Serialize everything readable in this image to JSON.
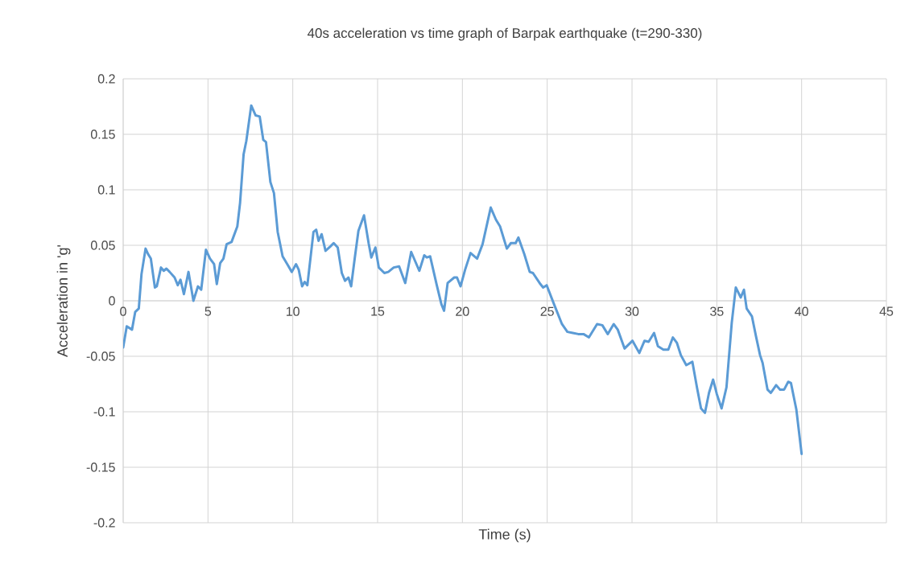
{
  "chart_data": {
    "type": "line",
    "title": "40s acceleration vs time graph of Barpak earthquake (t=290-330)",
    "xlabel": "Time (s)",
    "ylabel": "Acceleration in 'g'",
    "xlim": [
      0,
      45
    ],
    "xticks": [
      0,
      5,
      10,
      15,
      20,
      25,
      30,
      35,
      40,
      45
    ],
    "ylim": [
      -0.2,
      0.2
    ],
    "yticks": [
      0.2,
      0.15,
      0.1,
      0.05,
      0,
      -0.05,
      -0.1,
      -0.15,
      -0.2
    ],
    "grid": true,
    "marker": "none",
    "line_style": "solid",
    "series": [
      {
        "color": "#5b9bd5",
        "x": [
          0,
          0.21,
          0.52,
          0.71,
          0.92,
          1.08,
          1.32,
          1.47,
          1.63,
          1.87,
          1.98,
          2.23,
          2.39,
          2.55,
          2.74,
          3.03,
          3.22,
          3.38,
          3.58,
          3.85,
          4.14,
          4.41,
          4.6,
          4.88,
          5.12,
          5.36,
          5.52,
          5.72,
          5.91,
          6.1,
          6.39,
          6.73,
          6.89,
          7.1,
          7.26,
          7.55,
          7.81,
          8.05,
          8.26,
          8.42,
          8.68,
          8.89,
          9.11,
          9.4,
          9.71,
          9.94,
          10.19,
          10.35,
          10.55,
          10.7,
          10.86,
          11.22,
          11.38,
          11.52,
          11.7,
          11.93,
          12.22,
          12.41,
          12.65,
          12.89,
          13.08,
          13.28,
          13.44,
          13.65,
          13.87,
          14.2,
          14.47,
          14.63,
          14.87,
          15.07,
          15.4,
          15.63,
          15.95,
          16.27,
          16.63,
          16.98,
          17.46,
          17.75,
          17.9,
          18.1,
          18.49,
          18.76,
          18.92,
          19.13,
          19.52,
          19.68,
          19.89,
          20.16,
          20.48,
          20.87,
          21.19,
          21.67,
          21.98,
          22.22,
          22.62,
          22.86,
          23.14,
          23.3,
          23.65,
          23.97,
          24.16,
          24.6,
          24.76,
          24.97,
          25.4,
          25.87,
          26.19,
          26.51,
          26.83,
          27.14,
          27.46,
          27.94,
          28.25,
          28.57,
          28.92,
          29.16,
          29.56,
          30.03,
          30.43,
          30.74,
          30.98,
          31.3,
          31.53,
          31.85,
          32.14,
          32.41,
          32.65,
          32.88,
          33.2,
          33.56,
          33.83,
          34.07,
          34.3,
          34.54,
          34.78,
          35.0,
          35.28,
          35.57,
          35.88,
          36.12,
          36.41,
          36.6,
          36.76,
          37.07,
          37.31,
          37.55,
          37.7,
          37.99,
          38.18,
          38.5,
          38.73,
          38.97,
          39.21,
          39.37,
          39.69,
          40.0
        ],
        "values": [
          -0.042,
          -0.023,
          -0.026,
          -0.01,
          -0.007,
          0.024,
          0.047,
          0.042,
          0.038,
          0.012,
          0.013,
          0.03,
          0.027,
          0.029,
          0.026,
          0.021,
          0.014,
          0.019,
          0.006,
          0.026,
          0.0,
          0.013,
          0.01,
          0.046,
          0.038,
          0.033,
          0.015,
          0.034,
          0.038,
          0.051,
          0.053,
          0.067,
          0.088,
          0.132,
          0.144,
          0.176,
          0.167,
          0.166,
          0.145,
          0.143,
          0.107,
          0.097,
          0.062,
          0.04,
          0.032,
          0.026,
          0.033,
          0.028,
          0.013,
          0.017,
          0.014,
          0.062,
          0.064,
          0.054,
          0.06,
          0.045,
          0.049,
          0.052,
          0.048,
          0.025,
          0.018,
          0.021,
          0.013,
          0.038,
          0.063,
          0.077,
          0.052,
          0.039,
          0.048,
          0.03,
          0.025,
          0.026,
          0.03,
          0.031,
          0.016,
          0.044,
          0.027,
          0.041,
          0.039,
          0.04,
          0.014,
          -0.003,
          -0.009,
          0.016,
          0.021,
          0.021,
          0.013,
          0.028,
          0.043,
          0.038,
          0.051,
          0.084,
          0.073,
          0.067,
          0.047,
          0.052,
          0.052,
          0.057,
          0.042,
          0.026,
          0.025,
          0.015,
          0.012,
          0.014,
          -0.003,
          -0.021,
          -0.028,
          -0.029,
          -0.03,
          -0.03,
          -0.033,
          -0.021,
          -0.022,
          -0.03,
          -0.021,
          -0.026,
          -0.043,
          -0.036,
          -0.047,
          -0.036,
          -0.037,
          -0.029,
          -0.041,
          -0.044,
          -0.044,
          -0.033,
          -0.038,
          -0.049,
          -0.058,
          -0.055,
          -0.078,
          -0.097,
          -0.101,
          -0.083,
          -0.071,
          -0.084,
          -0.097,
          -0.078,
          -0.02,
          0.012,
          0.003,
          0.01,
          -0.007,
          -0.014,
          -0.032,
          -0.049,
          -0.056,
          -0.08,
          -0.083,
          -0.076,
          -0.08,
          -0.08,
          -0.073,
          -0.074,
          -0.098,
          -0.138
        ]
      }
    ]
  }
}
